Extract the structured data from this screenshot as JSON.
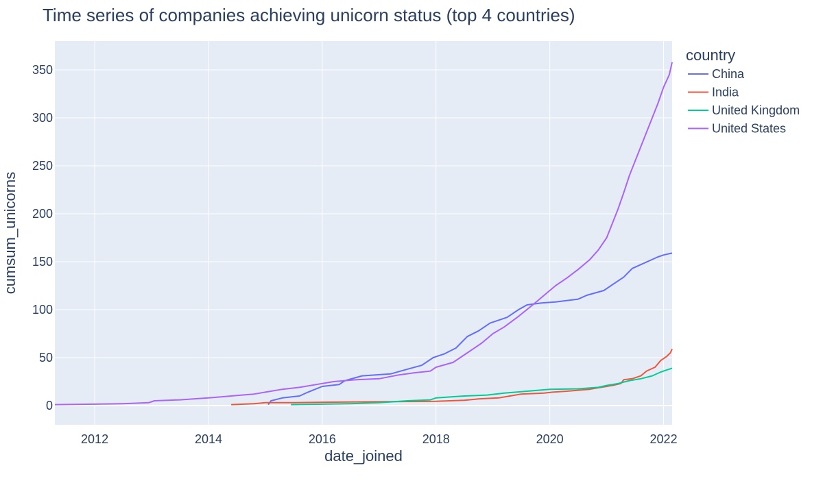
{
  "chart_data": {
    "type": "line",
    "title": "Time series of companies achieving unicorn status (top 4 countries)",
    "xlabel": "date_joined",
    "ylabel": "cumsum_unicorns",
    "xlim": [
      2011.3,
      2022.15
    ],
    "ylim": [
      -20,
      380
    ],
    "x_ticks": [
      2012,
      2014,
      2016,
      2018,
      2020,
      2022
    ],
    "y_ticks": [
      0,
      50,
      100,
      150,
      200,
      250,
      300,
      350
    ],
    "grid": true,
    "plot_background": "#e5ecf6",
    "legend": {
      "title": "country",
      "placement": "right"
    },
    "series": [
      {
        "name": "China",
        "color": "#636efa",
        "points": [
          [
            2015.05,
            1
          ],
          [
            2015.1,
            5
          ],
          [
            2015.3,
            8
          ],
          [
            2015.6,
            10
          ],
          [
            2015.75,
            14
          ],
          [
            2016.0,
            20
          ],
          [
            2016.3,
            22
          ],
          [
            2016.4,
            26
          ],
          [
            2016.7,
            31
          ],
          [
            2017.2,
            33
          ],
          [
            2017.5,
            38
          ],
          [
            2017.75,
            42
          ],
          [
            2017.95,
            50
          ],
          [
            2018.15,
            54
          ],
          [
            2018.35,
            60
          ],
          [
            2018.55,
            72
          ],
          [
            2018.75,
            78
          ],
          [
            2018.95,
            86
          ],
          [
            2019.25,
            92
          ],
          [
            2019.45,
            100
          ],
          [
            2019.6,
            105
          ],
          [
            2019.85,
            107
          ],
          [
            2020.1,
            108
          ],
          [
            2020.5,
            111
          ],
          [
            2020.65,
            115
          ],
          [
            2020.95,
            120
          ],
          [
            2021.1,
            126
          ],
          [
            2021.3,
            134
          ],
          [
            2021.45,
            143
          ],
          [
            2021.6,
            147
          ],
          [
            2021.75,
            151
          ],
          [
            2021.9,
            155
          ],
          [
            2022.0,
            157
          ],
          [
            2022.15,
            159
          ]
        ]
      },
      {
        "name": "India",
        "color": "#ef553b",
        "points": [
          [
            2014.4,
            1
          ],
          [
            2014.8,
            2
          ],
          [
            2015.0,
            3
          ],
          [
            2015.5,
            3
          ],
          [
            2016.0,
            3.5
          ],
          [
            2017.0,
            4
          ],
          [
            2018.0,
            4.5
          ],
          [
            2018.5,
            5.5
          ],
          [
            2018.75,
            7
          ],
          [
            2019.1,
            8
          ],
          [
            2019.3,
            10
          ],
          [
            2019.5,
            12
          ],
          [
            2019.9,
            13
          ],
          [
            2020.05,
            14
          ],
          [
            2020.3,
            15
          ],
          [
            2020.7,
            17
          ],
          [
            2020.9,
            19
          ],
          [
            2021.1,
            21
          ],
          [
            2021.25,
            23
          ],
          [
            2021.3,
            27
          ],
          [
            2021.45,
            28
          ],
          [
            2021.6,
            31
          ],
          [
            2021.7,
            36
          ],
          [
            2021.85,
            40
          ],
          [
            2021.95,
            47
          ],
          [
            2022.05,
            51
          ],
          [
            2022.12,
            55
          ],
          [
            2022.15,
            59
          ]
        ]
      },
      {
        "name": "United Kingdom",
        "color": "#00cc96",
        "points": [
          [
            2015.45,
            1
          ],
          [
            2016.0,
            1.5
          ],
          [
            2016.5,
            2
          ],
          [
            2017.0,
            3
          ],
          [
            2017.5,
            5
          ],
          [
            2017.9,
            6
          ],
          [
            2018.0,
            8
          ],
          [
            2018.5,
            10
          ],
          [
            2018.9,
            11
          ],
          [
            2019.2,
            13
          ],
          [
            2019.6,
            15
          ],
          [
            2020.0,
            17
          ],
          [
            2020.5,
            17.5
          ],
          [
            2020.85,
            19
          ],
          [
            2021.0,
            21
          ],
          [
            2021.2,
            23
          ],
          [
            2021.4,
            26
          ],
          [
            2021.6,
            28
          ],
          [
            2021.8,
            31
          ],
          [
            2021.95,
            35
          ],
          [
            2022.05,
            37
          ],
          [
            2022.15,
            39
          ]
        ]
      },
      {
        "name": "United States",
        "color": "#ab63fa",
        "points": [
          [
            2011.3,
            1
          ],
          [
            2012.0,
            1.5
          ],
          [
            2012.5,
            2
          ],
          [
            2012.95,
            3
          ],
          [
            2013.05,
            5
          ],
          [
            2013.5,
            6
          ],
          [
            2014.0,
            8
          ],
          [
            2014.3,
            9.5
          ],
          [
            2014.5,
            10.5
          ],
          [
            2014.8,
            12
          ],
          [
            2015.0,
            14
          ],
          [
            2015.3,
            17
          ],
          [
            2015.6,
            19
          ],
          [
            2015.9,
            22
          ],
          [
            2016.2,
            25
          ],
          [
            2016.6,
            27
          ],
          [
            2017.0,
            28
          ],
          [
            2017.35,
            32
          ],
          [
            2017.6,
            34
          ],
          [
            2017.9,
            36
          ],
          [
            2018.0,
            40
          ],
          [
            2018.3,
            45
          ],
          [
            2018.55,
            55
          ],
          [
            2018.8,
            65
          ],
          [
            2019.0,
            75
          ],
          [
            2019.2,
            82
          ],
          [
            2019.45,
            93
          ],
          [
            2019.7,
            105
          ],
          [
            2019.9,
            115
          ],
          [
            2020.1,
            125
          ],
          [
            2020.3,
            133
          ],
          [
            2020.5,
            142
          ],
          [
            2020.7,
            152
          ],
          [
            2020.85,
            162
          ],
          [
            2021.0,
            175
          ],
          [
            2021.1,
            190
          ],
          [
            2021.2,
            205
          ],
          [
            2021.3,
            222
          ],
          [
            2021.4,
            240
          ],
          [
            2021.5,
            255
          ],
          [
            2021.6,
            270
          ],
          [
            2021.7,
            285
          ],
          [
            2021.8,
            300
          ],
          [
            2021.9,
            315
          ],
          [
            2022.0,
            332
          ],
          [
            2022.1,
            345
          ],
          [
            2022.15,
            358
          ]
        ]
      }
    ]
  }
}
